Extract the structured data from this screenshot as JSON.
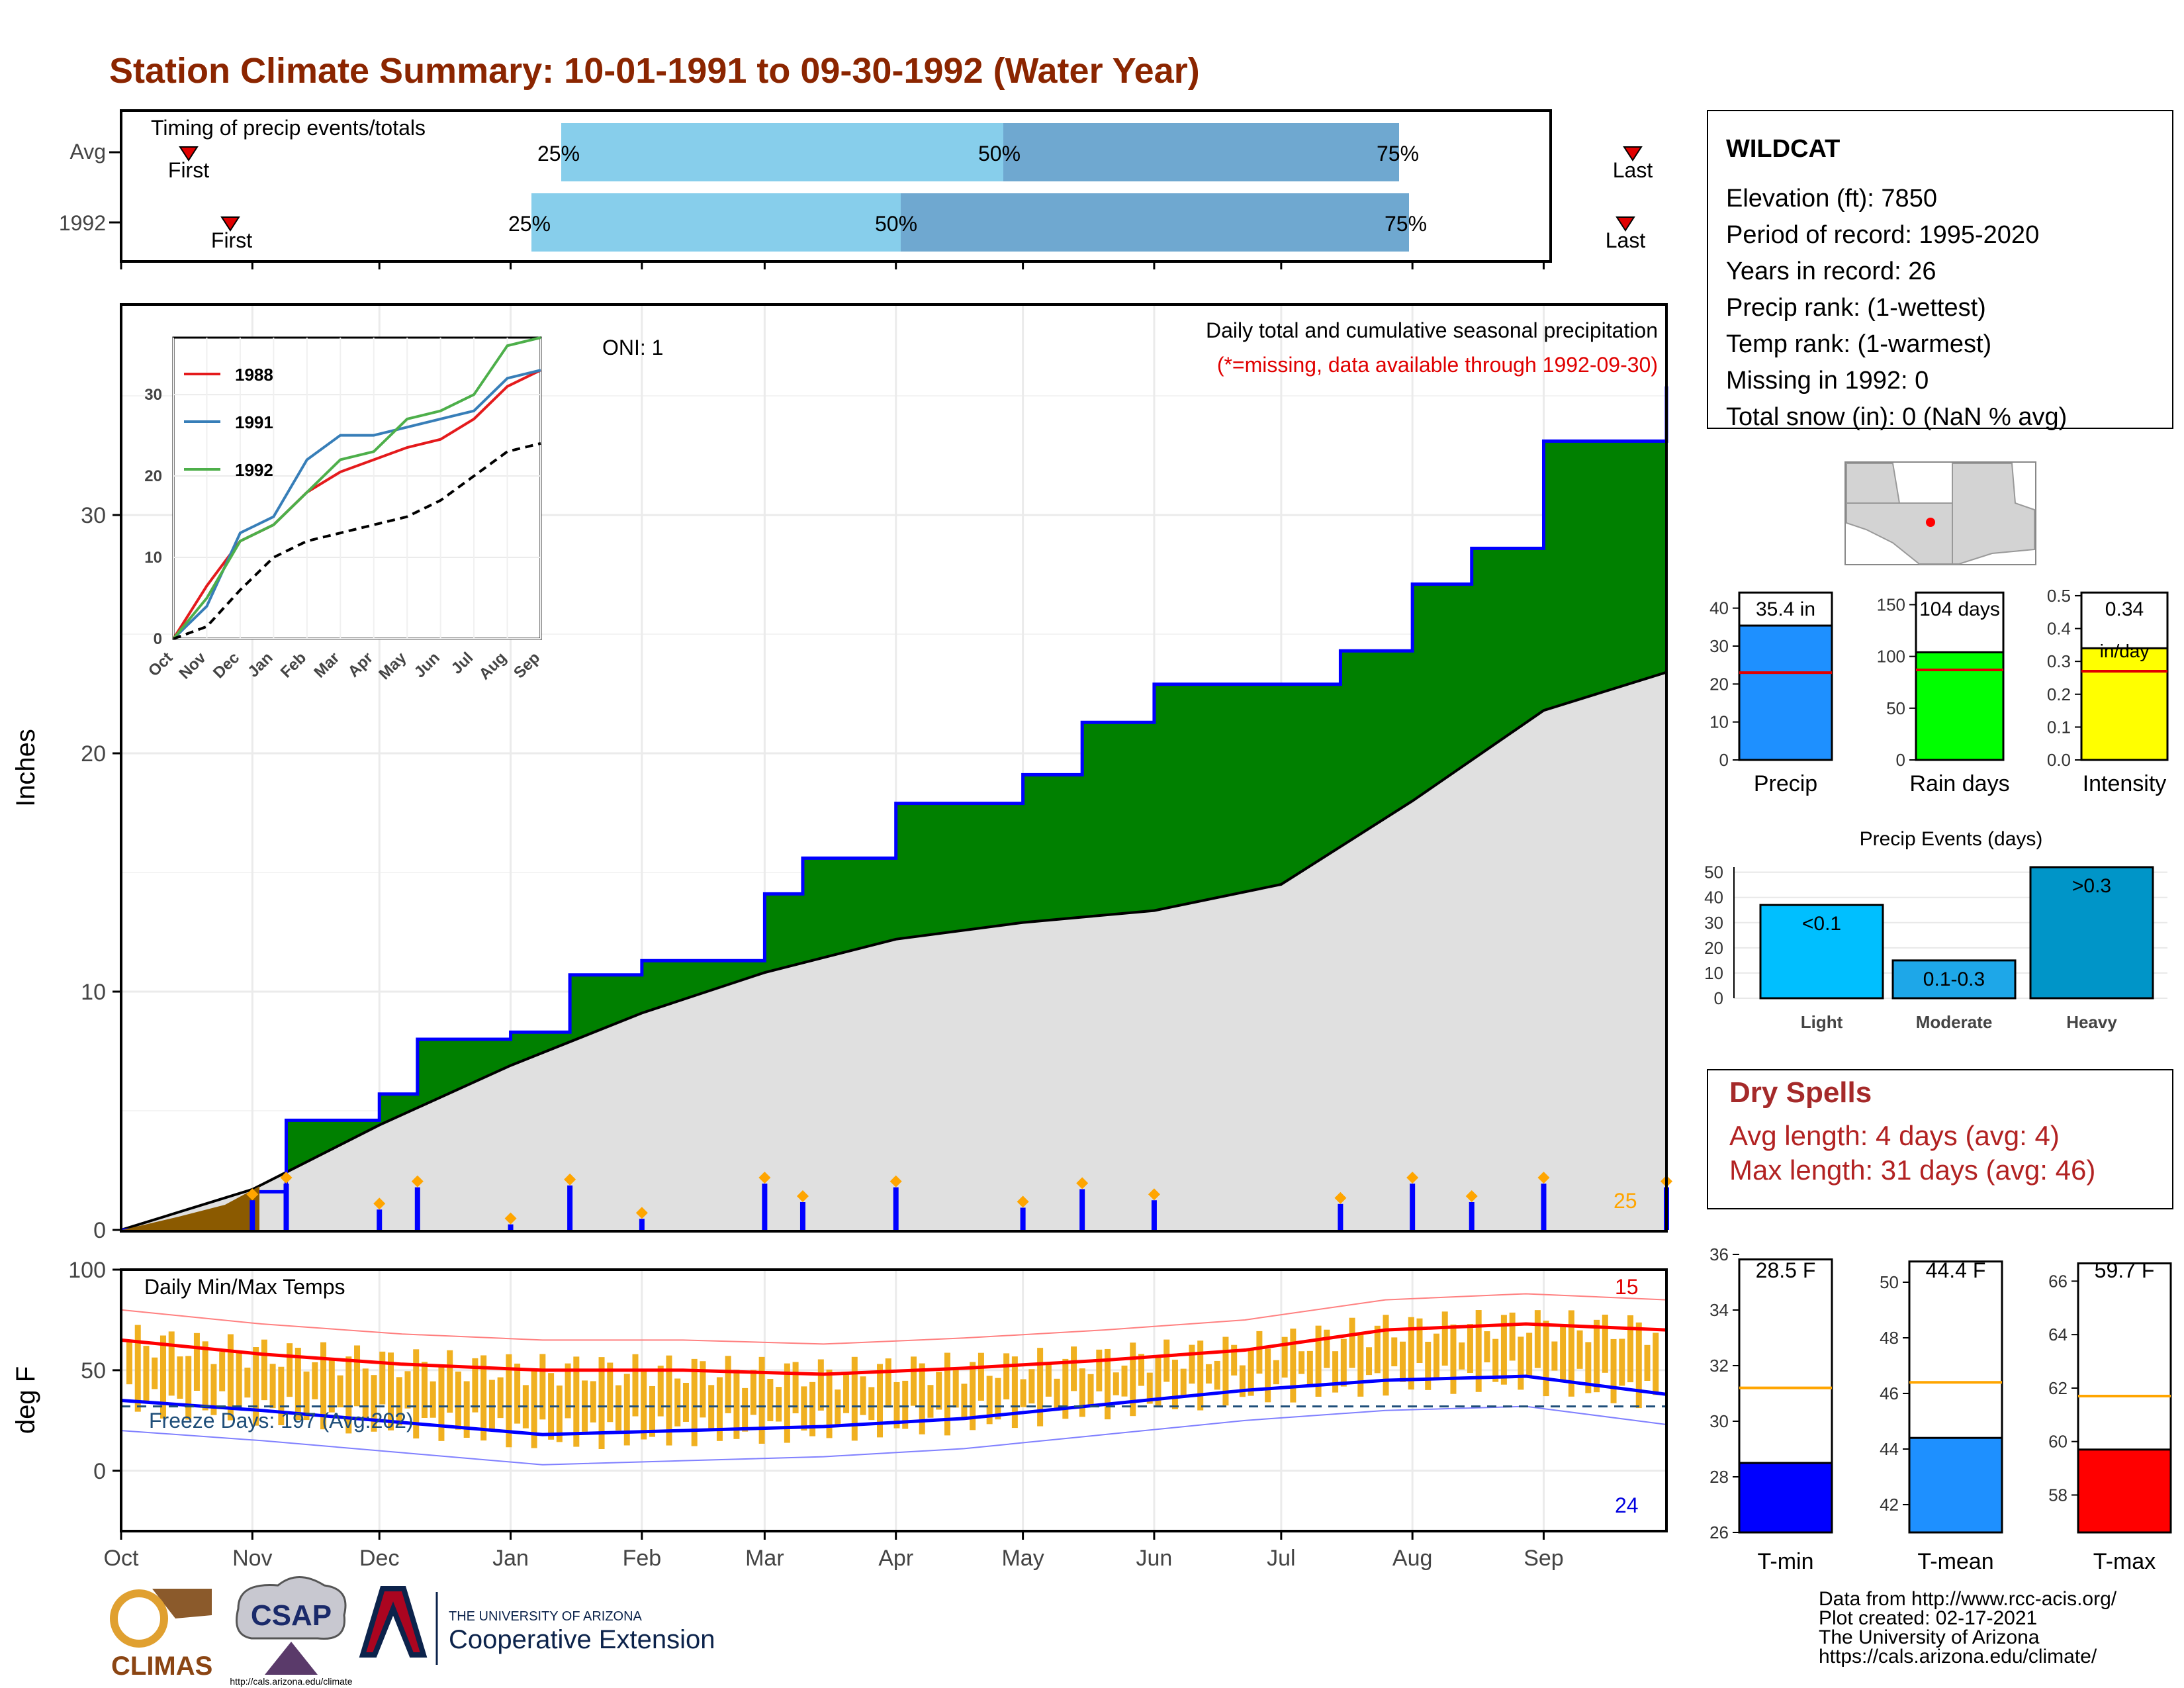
{
  "title": "Station Climate Summary: 10-01-1991 to 09-30-1992 (Water Year)",
  "colors": {
    "title": "#8B2500",
    "precip_fill": "#008000",
    "precip_line": "#0000FF",
    "avg_fill": "#E0E0E0",
    "dry_brown": "#8B5A00",
    "tbar": "#F0B020",
    "tmax": "#FF0000",
    "tmin": "#0000FF",
    "light_blue": "#87CEEB",
    "mid_blue": "#6FA8D0"
  },
  "timing": {
    "label": "Timing of precip events/totals",
    "rows": [
      {
        "name": "Avg",
        "first_label": "First",
        "last_label": "Last",
        "p25": "25%",
        "p50": "50%",
        "p75": "75%"
      },
      {
        "name": "1992",
        "first_label": "First",
        "last_label": "Last",
        "p25": "25%",
        "p50": "50%",
        "p75": "75%"
      }
    ]
  },
  "station": {
    "name": "WILDCAT",
    "lines": [
      "Elevation (ft): 7850",
      "Period of record: 1995-2020",
      "Years in record: 26",
      "Precip rank:  (1-wettest)",
      "Temp rank:  (1-warmest)",
      "Missing in 1992: 0",
      "Total snow (in): 0 (NaN % avg)"
    ]
  },
  "precip_panel": {
    "ylabel": "Inches",
    "oni": "ONI: 1",
    "desc1": "Daily total and cumulative seasonal precipitation",
    "desc2": "(*=missing, data available through 1992-09-30)",
    "count_label": "25"
  },
  "temp_panel": {
    "ylabel": "deg F",
    "title": "Daily Min/Max Temps",
    "freeze": "Freeze Days: 197 (Avg:202)",
    "top_count": "15",
    "bottom_count": "24"
  },
  "months": [
    "Oct",
    "Nov",
    "Dec",
    "Jan",
    "Feb",
    "Mar",
    "Apr",
    "May",
    "Jun",
    "Jul",
    "Aug",
    "Sep"
  ],
  "inset_months": [
    "Oct",
    "Nov",
    "Dec",
    "Jan",
    "Feb",
    "Mar",
    "Apr",
    "May",
    "Jun",
    "Jul",
    "Aug",
    "Sep"
  ],
  "inset_legend": [
    "1988",
    "1991",
    "1992"
  ],
  "summary_bars": {
    "precip": {
      "label": "Precip",
      "value_label": "35.4 in"
    },
    "rain": {
      "label": "Rain days",
      "value_label": "104 days"
    },
    "intensity": {
      "label": "Intensity",
      "value_label": "0.34",
      "unit": "in/day"
    }
  },
  "events": {
    "title": "Precip Events (days)",
    "categories": [
      "Light",
      "Moderate",
      "Heavy"
    ],
    "bar_labels": [
      "<0.1",
      "0.1-0.3",
      ">0.3"
    ]
  },
  "dry": {
    "title": "Dry Spells",
    "avg": "Avg length: 4 days (avg: 4)",
    "max": "Max length: 31 days (avg: 46)"
  },
  "temp_bars": [
    {
      "label": "T-min",
      "value_label": "28.5 F"
    },
    {
      "label": "T-mean",
      "value_label": "44.4 F"
    },
    {
      "label": "T-max",
      "value_label": "59.7 F"
    }
  ],
  "footer": [
    "Data from http://www.rcc-acis.org/",
    "Plot created: 02-17-2021",
    "The University of Arizona",
    "https://cals.arizona.edu/climate/"
  ],
  "logos": {
    "climas": "CLIMAS",
    "csap": "CSAP",
    "csap_url": "http://cals.arizona.edu/climate",
    "ua_small": "THE UNIVERSITY OF ARIZONA",
    "coop": "Cooperative Extension"
  },
  "chart_data": [
    {
      "type": "bar",
      "title": "Timing of precip events/totals",
      "categories": [
        "Avg",
        "1992"
      ],
      "series": [
        {
          "name": "25%",
          "values": [
            "1991-12-20",
            "1991-12-16"
          ]
        },
        {
          "name": "50%",
          "values": [
            "1992-04-20",
            "1992-03-29"
          ]
        },
        {
          "name": "75%",
          "values": [
            "1992-07-26",
            "1992-07-27"
          ]
        }
      ],
      "first": [
        "1991-10-08",
        "1991-10-14"
      ],
      "last": [
        "1992-09-27",
        "1992-09-26"
      ]
    },
    {
      "type": "area",
      "title": "Daily total and cumulative seasonal precipitation",
      "ylabel": "Inches",
      "ylim": [
        0,
        35
      ],
      "xlim": [
        "1991-10-01",
        "1992-09-30"
      ],
      "series": [
        {
          "name": "cumulative",
          "x": [
            "1991-10-01",
            "1991-11-01",
            "1991-11-09",
            "1991-12-01",
            "1991-12-10",
            "1992-01-01",
            "1992-01-15",
            "1992-02-01",
            "1992-03-01",
            "1992-03-10",
            "1992-04-01",
            "1992-05-01",
            "1992-05-15",
            "1992-06-01",
            "1992-07-01",
            "1992-07-15",
            "1992-08-01",
            "1992-08-15",
            "1992-09-01",
            "1992-09-15",
            "1992-09-30"
          ],
          "values": [
            0,
            1.6,
            4.6,
            5.7,
            8.0,
            8.3,
            10.7,
            11.3,
            14.1,
            15.6,
            17.9,
            19.1,
            21.3,
            22.9,
            22.9,
            24.3,
            27.1,
            28.6,
            33.1,
            33.1,
            35.4
          ]
        },
        {
          "name": "average",
          "x": [
            "1991-10-01",
            "1991-11-01",
            "1991-12-01",
            "1992-01-01",
            "1992-02-01",
            "1992-03-01",
            "1992-04-01",
            "1992-05-01",
            "1992-06-01",
            "1992-07-01",
            "1992-08-01",
            "1992-09-01",
            "1992-09-30"
          ],
          "values": [
            0,
            1.7,
            4.4,
            6.9,
            9.1,
            10.8,
            12.2,
            12.9,
            13.4,
            14.5,
            18.0,
            21.8,
            23.4
          ]
        }
      ]
    },
    {
      "type": "line",
      "title": "Inset cumulative precipitation",
      "ylim": [
        0,
        37
      ],
      "series": [
        {
          "name": "1988",
          "values": [
            0,
            6.5,
            12,
            14,
            18,
            20.5,
            22,
            23.5,
            24.5,
            27,
            31,
            33
          ]
        },
        {
          "name": "1991",
          "values": [
            0,
            4,
            13,
            15,
            22,
            25,
            25,
            26,
            27,
            28,
            32,
            33
          ]
        },
        {
          "name": "1992",
          "values": [
            0,
            5,
            12,
            14,
            18,
            22,
            23,
            27,
            28,
            30,
            36,
            38
          ]
        },
        {
          "name": "average",
          "values": [
            0,
            1.5,
            6,
            10,
            12,
            13,
            14,
            15,
            17,
            20,
            23,
            24
          ]
        }
      ]
    },
    {
      "type": "line",
      "title": "Daily Min/Max Temps",
      "ylabel": "deg F",
      "ylim": [
        -30,
        100
      ],
      "series": [
        {
          "name": "avg max",
          "values": [
            65,
            58,
            53,
            50,
            50,
            48,
            51,
            55,
            60,
            70,
            73,
            70
          ]
        },
        {
          "name": "avg min",
          "values": [
            35,
            30,
            24,
            18,
            20,
            22,
            26,
            33,
            40,
            45,
            47,
            38
          ]
        }
      ],
      "freeze_line": 32
    },
    {
      "type": "bar",
      "categories": [
        "Precip",
        "Rain days",
        "Intensity"
      ],
      "values": [
        35.4,
        104,
        0.34
      ],
      "averages": [
        23,
        87,
        0.27
      ]
    },
    {
      "type": "bar",
      "title": "Precip Events (days)",
      "categories": [
        "Light",
        "Moderate",
        "Heavy"
      ],
      "values": [
        37,
        15,
        52
      ],
      "ylim": [
        0,
        52
      ]
    },
    {
      "type": "bar",
      "categories": [
        "T-min",
        "T-mean",
        "T-max"
      ],
      "values": [
        28.5,
        44.4,
        59.7
      ],
      "averages": [
        31.2,
        46.4,
        61.7
      ]
    }
  ]
}
